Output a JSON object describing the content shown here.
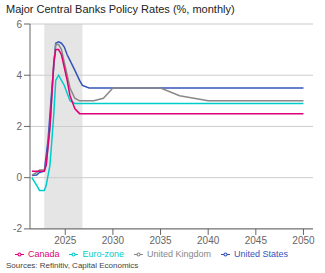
{
  "chart_data": {
    "type": "line",
    "title": "Major Central Banks Policy Rates (%, monthly)",
    "source": "Sources: Refinitiv, Capital Economics",
    "xlim": [
      2021.3,
      2051
    ],
    "xticks": [
      2025,
      2030,
      2035,
      2040,
      2045,
      2050
    ],
    "ylim": [
      -2,
      6
    ],
    "yticks": [
      -2,
      0,
      2,
      4,
      6
    ],
    "shaded_region": [
      2022.8,
      2026.8
    ],
    "grid": true,
    "legend": "bottom",
    "series": [
      {
        "name": "United States",
        "color": "#3355bb",
        "x": [
          2021.5,
          2022.0,
          2022.3,
          2022.8,
          2023.2,
          2023.6,
          2024.0,
          2024.3,
          2024.6,
          2024.9,
          2025.2,
          2025.6,
          2026.0,
          2026.5,
          2026.8,
          2027.5,
          2030.0,
          2035.0,
          2040.0,
          2045.0,
          2050.0
        ],
        "values": [
          0.08,
          0.1,
          0.2,
          0.25,
          1.5,
          3.5,
          5.25,
          5.3,
          5.25,
          5.1,
          4.8,
          4.5,
          4.2,
          3.8,
          3.6,
          3.5,
          3.5,
          3.5,
          3.5,
          3.5,
          3.5
        ]
      },
      {
        "name": "Euro-zone",
        "color": "#00cccc",
        "x": [
          2021.5,
          2022.0,
          2022.3,
          2022.8,
          2023.0,
          2023.4,
          2023.8,
          2024.0,
          2024.3,
          2024.6,
          2024.9,
          2025.2,
          2025.5,
          2026.0,
          2026.5,
          2026.8,
          2027.5,
          2030.0,
          2035.0,
          2040.0,
          2045.0,
          2050.0
        ],
        "values": [
          0.0,
          -0.3,
          -0.5,
          -0.5,
          -0.3,
          0.5,
          2.5,
          3.8,
          4.0,
          3.8,
          3.6,
          3.3,
          3.0,
          2.9,
          2.9,
          2.9,
          2.9,
          2.9,
          2.9,
          2.9,
          2.9,
          2.9
        ]
      },
      {
        "name": "United Kingdom",
        "color": "#888888",
        "x": [
          2021.5,
          2022.0,
          2022.3,
          2022.8,
          2023.0,
          2023.4,
          2023.8,
          2024.0,
          2024.3,
          2024.6,
          2024.9,
          2025.2,
          2025.5,
          2026.0,
          2026.5,
          2026.8,
          2027.5,
          2028.0,
          2029.0,
          2030.0,
          2032.0,
          2035.0,
          2037.0,
          2040.0,
          2045.0,
          2050.0
        ],
        "values": [
          0.1,
          0.2,
          0.3,
          0.3,
          0.5,
          2.0,
          4.5,
          5.2,
          5.2,
          5.0,
          4.5,
          4.0,
          3.5,
          3.1,
          3.0,
          3.0,
          3.0,
          3.0,
          3.1,
          3.5,
          3.5,
          3.5,
          3.2,
          3.0,
          3.0,
          3.0
        ]
      },
      {
        "name": "Canada",
        "color": "#dd0077",
        "x": [
          2021.5,
          2022.0,
          2022.3,
          2022.8,
          2023.0,
          2023.4,
          2023.8,
          2024.0,
          2024.3,
          2024.6,
          2024.9,
          2025.2,
          2025.5,
          2026.0,
          2026.5,
          2026.8,
          2027.5,
          2030.0,
          2035.0,
          2040.0,
          2045.0,
          2050.0
        ],
        "values": [
          0.25,
          0.25,
          0.25,
          0.25,
          0.5,
          2.0,
          4.5,
          5.0,
          5.0,
          4.8,
          4.3,
          3.8,
          3.2,
          2.7,
          2.5,
          2.5,
          2.5,
          2.5,
          2.5,
          2.5,
          2.5,
          2.5
        ]
      }
    ]
  }
}
